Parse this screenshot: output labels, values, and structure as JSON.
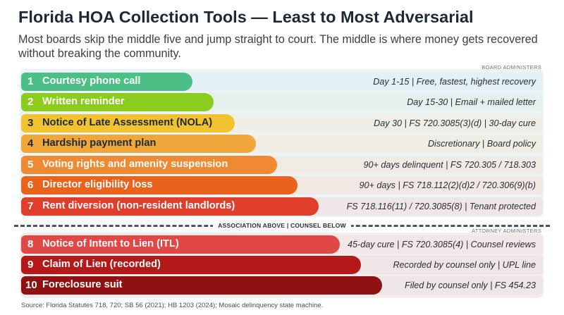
{
  "title": "Florida HOA Collection Tools — Least to Most Adversarial",
  "subtitle": "Most boards skip the middle five and jump straight to court. The middle is where money gets recovered without breaking the community.",
  "groups": {
    "board": "BOARD ADMINISTERS",
    "attorney": "ATTORNEY ADMINISTERS"
  },
  "divider_label": "ASSOCIATION ABOVE | COUNSEL BELOW",
  "source": "Source: Florida Statutes 718, 720; SB 56 (2021); HB 1203 (2024); Mosaic delinquency state machine.",
  "chart_data": {
    "type": "bar",
    "title": "Florida HOA Collection Tools — Least to Most Adversarial",
    "categories": [
      "Courtesy phone call",
      "Written reminder",
      "Notice of Late Assessment (NOLA)",
      "Hardship payment plan",
      "Voting rights and amenity suspension",
      "Director eligibility loss",
      "Rent diversion (non-resident landlords)",
      "Notice of Intent to Lien (ITL)",
      "Claim of Lien (recorded)",
      "Foreclosure suit"
    ],
    "values": [
      1,
      2,
      3,
      4,
      5,
      6,
      7,
      8,
      9,
      10
    ],
    "numbers": [
      "1",
      "2",
      "3",
      "4",
      "5",
      "6",
      "7",
      "8",
      "9",
      "10"
    ],
    "details": [
      "Day 1-15 | Free, fastest, highest recovery",
      "Day 15-30 | Email + mailed letter",
      "Day 30 | FS 720.3085(3)(d) | 30-day cure",
      "Discretionary | Board policy",
      "90+ days delinquent | FS 720.305 / 718.303",
      "90+ days | FS 718.112(2)(d)2 / 720.306(9)(b)",
      "FS 718.116(11) / 720.3085(8) | Tenant protected",
      "45-day cure | FS 720.3085(4) | Counsel reviews",
      "Recorded by counsel only | UPL line",
      "Filed by counsel only | FS 454.23"
    ],
    "groups": [
      "board",
      "board",
      "board",
      "board",
      "board",
      "board",
      "board",
      "attorney",
      "attorney",
      "attorney"
    ],
    "colors": [
      "#4cbf86",
      "#8ccc1f",
      "#f2c230",
      "#f0a73a",
      "#f08a32",
      "#e9631d",
      "#e03d2a",
      "#e04845",
      "#b51818",
      "#8f1111"
    ],
    "label_colors": [
      "#ffffff",
      "#ffffff",
      "#1d2a36",
      "#1d2a36",
      "#ffffff",
      "#ffffff",
      "#ffffff",
      "#ffffff",
      "#ffffff",
      "#ffffff"
    ],
    "row_backgrounds": [
      "#e3f1f6",
      "#e4f1ef",
      "#eef0e8",
      "#f0eee4",
      "#f1ebe5",
      "#f1e8e4",
      "#f0e6e7",
      "#f2e6e7",
      "#efe5e6",
      "#ede5e6"
    ],
    "xlim": [
      0,
      10
    ]
  }
}
